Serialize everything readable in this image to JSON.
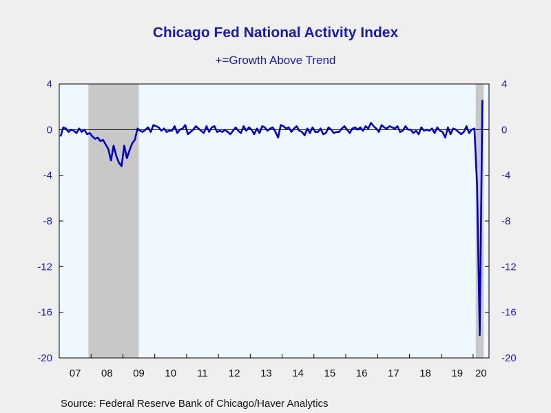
{
  "chart_data": {
    "type": "line",
    "title": "Chicago Fed National Activity Index",
    "subtitle": "+=Growth Above Trend",
    "source": "Source:  Federal Reserve Bank of Chicago/Haver Analytics",
    "xlabel": "",
    "ylabel": "",
    "ylim": [
      -20,
      4
    ],
    "yticks": [
      "4",
      "0",
      "-4",
      "-8",
      "-12",
      "-16",
      "-20"
    ],
    "x_tick_labels": [
      "07",
      "08",
      "09",
      "10",
      "11",
      "12",
      "13",
      "14",
      "15",
      "16",
      "17",
      "18",
      "19",
      "20"
    ],
    "x_start": "2007-01",
    "x_end": "2020-06",
    "grid": false,
    "zero_line": true,
    "recessions": [
      {
        "start": "2007-12",
        "end": "2009-06"
      },
      {
        "start": "2020-02",
        "end": "2020-04"
      }
    ],
    "series": [
      {
        "color": "#0000c0",
        "dates_start": "2007-01",
        "values": [
          -0.6,
          0.2,
          0.1,
          -0.2,
          0.0,
          -0.1,
          -0.3,
          0.1,
          -0.2,
          0.0,
          -0.4,
          -0.3,
          -0.6,
          -0.8,
          -0.7,
          -1.0,
          -0.9,
          -1.3,
          -1.7,
          -2.7,
          -1.4,
          -2.3,
          -2.9,
          -3.2,
          -1.4,
          -2.5,
          -1.8,
          -1.2,
          -0.9,
          0.1,
          -0.1,
          -0.2,
          0.0,
          0.2,
          -0.2,
          0.4,
          0.3,
          0.2,
          -0.1,
          0.1,
          -0.2,
          -0.1,
          -0.1,
          0.3,
          -0.3,
          0.0,
          0.1,
          0.4,
          -0.4,
          -0.2,
          0.0,
          0.3,
          0.1,
          -0.1,
          -0.3,
          0.3,
          -0.2,
          0.2,
          0.3,
          -0.2,
          -0.1,
          -0.2,
          0.0,
          -0.2,
          -0.4,
          -0.1,
          0.2,
          -0.1,
          -0.3,
          0.3,
          -0.1,
          0.2,
          0.0,
          -0.4,
          0.1,
          -0.3,
          0.3,
          0.2,
          -0.1,
          0.1,
          0.2,
          -0.2,
          -0.7,
          0.4,
          0.3,
          0.1,
          0.2,
          -0.2,
          0.1,
          0.3,
          -0.1,
          -0.2,
          -0.5,
          0.1,
          -0.3,
          0.2,
          -0.2,
          -0.2,
          0.1,
          -0.4,
          -0.3,
          0.2,
          0.0,
          -0.3,
          -0.2,
          -0.2,
          0.1,
          0.3,
          0.0,
          -0.3,
          0.1,
          0.2,
          0.0,
          0.2,
          -0.1,
          0.3,
          0.1,
          0.6,
          0.3,
          0.1,
          -0.2,
          0.4,
          0.2,
          0.1,
          0.3,
          0.2,
          0.1,
          0.3,
          -0.2,
          -0.1,
          0.3,
          0.0,
          0.0,
          -0.3,
          -0.1,
          -0.4,
          0.2,
          -0.1,
          0.0,
          -0.1,
          0.1,
          -0.3,
          0.2,
          -0.1,
          -0.2,
          -0.7,
          0.2,
          -0.4,
          0.1,
          0.0,
          -0.2,
          -0.4,
          -0.2,
          0.3,
          -0.3,
          0.0,
          0.1,
          -4.9,
          -18.0,
          2.6
        ]
      }
    ]
  }
}
